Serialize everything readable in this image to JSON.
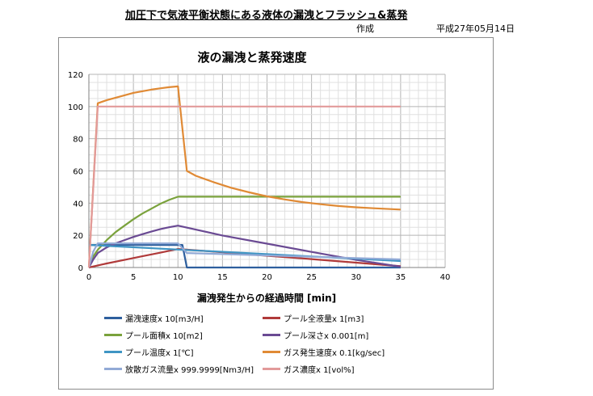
{
  "header": {
    "doc_title": "加圧下で気液平衡状態にある液体の漏洩とフラッシュ&蒸発",
    "author_label": "作成",
    "date": "平成27年05月14日"
  },
  "chart_data": {
    "type": "line",
    "title": "液の漏洩と蒸発速度",
    "xlabel": "漏洩発生からの経過時間 [min]",
    "ylabel": "",
    "xlim": [
      0,
      40
    ],
    "ylim": [
      0,
      120
    ],
    "xticks": [
      0,
      5,
      10,
      15,
      20,
      25,
      30,
      35,
      40
    ],
    "yticks": [
      0,
      20,
      40,
      60,
      80,
      100,
      120
    ],
    "grid": true,
    "legend_position": "bottom",
    "series": [
      {
        "name": "漏洩速度x 10[m3/H]",
        "color": "#2e5f9e",
        "points": [
          [
            0,
            14
          ],
          [
            10,
            14
          ],
          [
            10.5,
            14
          ],
          [
            11,
            0
          ],
          [
            35,
            0
          ]
        ]
      },
      {
        "name": "プール全液量x 1[m3]",
        "color": "#b03a3a",
        "points": [
          [
            0,
            0
          ],
          [
            2,
            2.5
          ],
          [
            4,
            4.7
          ],
          [
            6,
            7
          ],
          [
            8,
            9.2
          ],
          [
            10,
            11.5
          ],
          [
            15,
            9.5
          ],
          [
            20,
            7.3
          ],
          [
            25,
            5.2
          ],
          [
            30,
            3
          ],
          [
            35,
            0.8
          ]
        ]
      },
      {
        "name": "プール面積x 10[m2]",
        "color": "#7aa23c",
        "points": [
          [
            0,
            0
          ],
          [
            0.5,
            7
          ],
          [
            1,
            11
          ],
          [
            2,
            17
          ],
          [
            3,
            22
          ],
          [
            4,
            26
          ],
          [
            5,
            30
          ],
          [
            6,
            33.5
          ],
          [
            7,
            36.5
          ],
          [
            8,
            39.5
          ],
          [
            9,
            42
          ],
          [
            10,
            44
          ],
          [
            35,
            44
          ]
        ]
      },
      {
        "name": "プール深さx 0.001[m]",
        "color": "#6a4a93",
        "points": [
          [
            0,
            0
          ],
          [
            0.5,
            5
          ],
          [
            1,
            9
          ],
          [
            2,
            12.5
          ],
          [
            3,
            15
          ],
          [
            4,
            17
          ],
          [
            5,
            19
          ],
          [
            6,
            20.7
          ],
          [
            7,
            22.3
          ],
          [
            8,
            23.8
          ],
          [
            9,
            25
          ],
          [
            10,
            26
          ],
          [
            15,
            19.9
          ],
          [
            20,
            14.8
          ],
          [
            25,
            9.7
          ],
          [
            30,
            4.7
          ],
          [
            35,
            0.5
          ]
        ]
      },
      {
        "name": "プール温度x 1[℃]",
        "color": "#3f95c4",
        "points": [
          [
            0,
            14
          ],
          [
            35,
            4
          ]
        ]
      },
      {
        "name": "ガス発生速度x 0.1[kg/sec]",
        "color": "#e08a35",
        "points": [
          [
            0,
            0
          ],
          [
            1,
            102
          ],
          [
            2,
            104
          ],
          [
            3,
            105.5
          ],
          [
            4,
            107
          ],
          [
            5,
            108.5
          ],
          [
            6,
            109.5
          ],
          [
            7,
            110.5
          ],
          [
            8,
            111.3
          ],
          [
            9,
            112
          ],
          [
            10,
            112.5
          ],
          [
            11,
            60
          ],
          [
            12,
            57
          ],
          [
            14,
            53
          ],
          [
            16,
            49.5
          ],
          [
            18,
            46.7
          ],
          [
            20,
            44.2
          ],
          [
            22,
            42.3
          ],
          [
            24,
            40.6
          ],
          [
            26,
            39.3
          ],
          [
            28,
            38.2
          ],
          [
            30,
            37.4
          ],
          [
            32,
            36.8
          ],
          [
            35,
            36
          ]
        ]
      },
      {
        "name": "放散ガス流量x 999.9999[Nm3/H]",
        "color": "#92aad6",
        "points": [
          [
            0,
            0
          ],
          [
            0.5,
            10
          ],
          [
            1,
            15
          ],
          [
            10,
            15
          ],
          [
            11,
            9
          ],
          [
            35,
            5
          ]
        ]
      },
      {
        "name": "ガス濃度x 1[vol%]",
        "color": "#e29a9a",
        "points": [
          [
            0,
            0
          ],
          [
            1,
            100
          ],
          [
            35,
            100
          ]
        ]
      }
    ]
  }
}
